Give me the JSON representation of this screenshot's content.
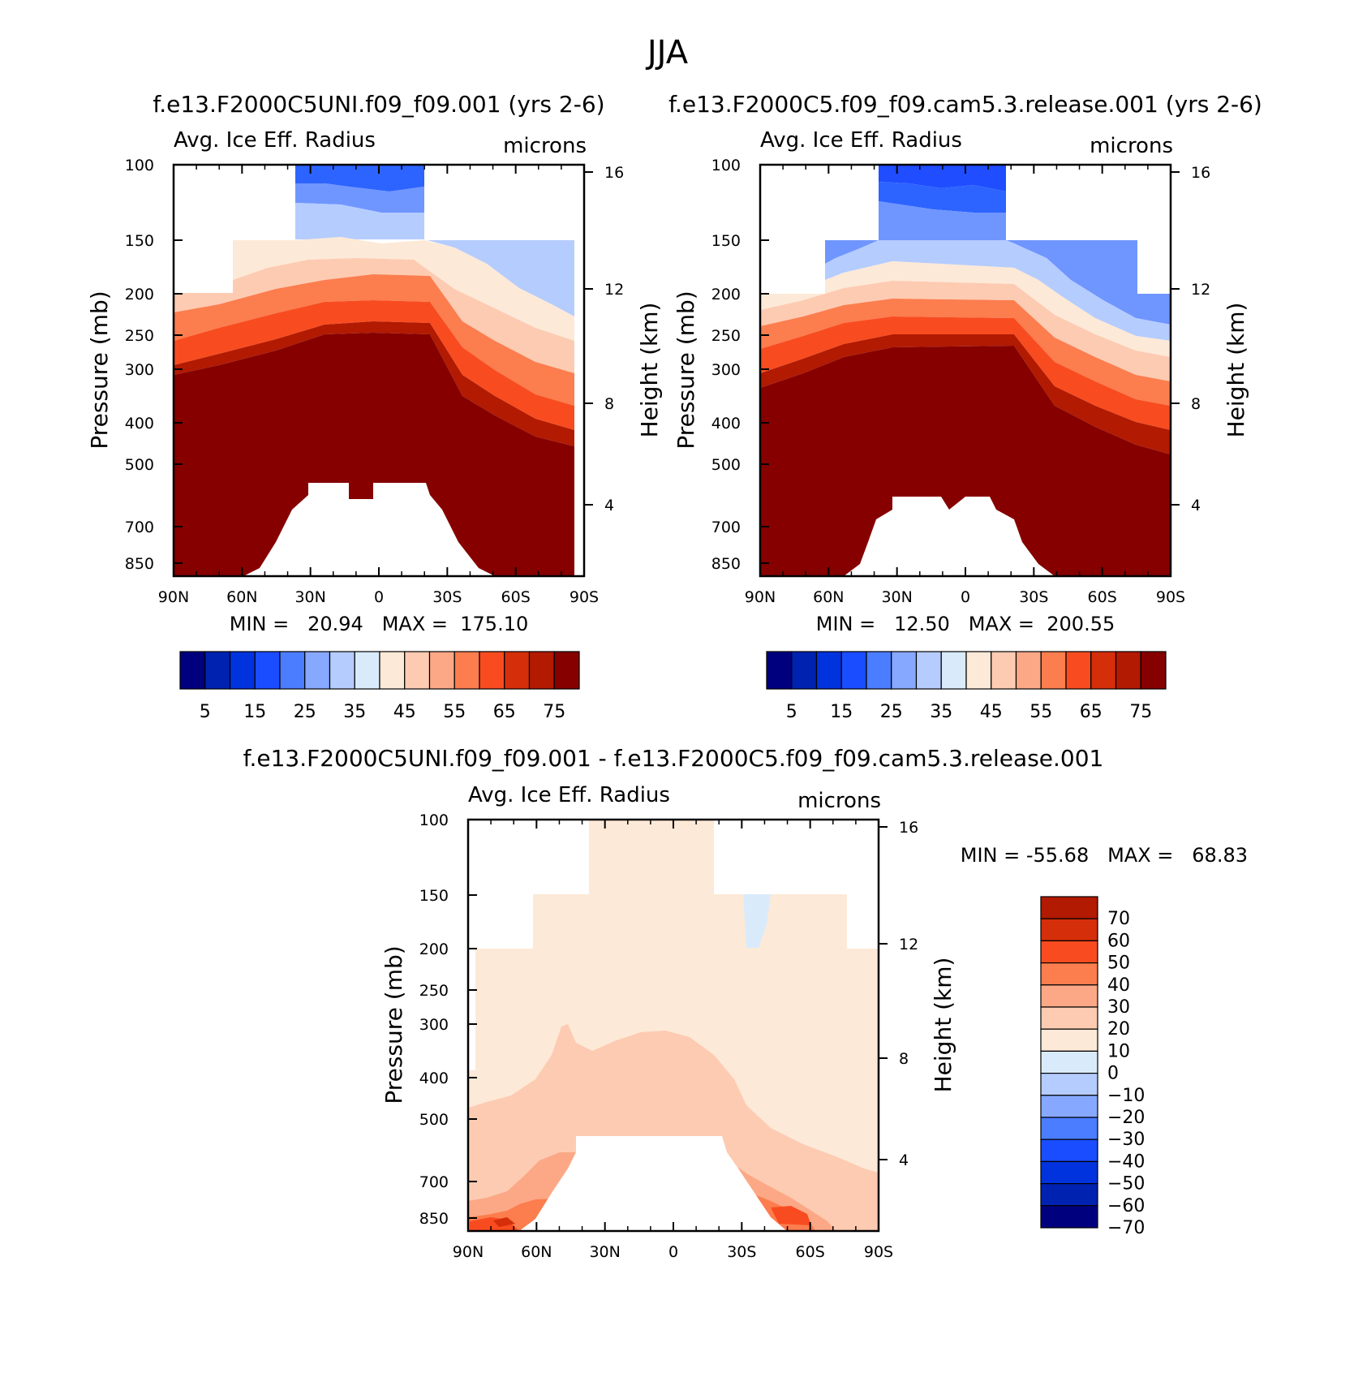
{
  "figure_title": "JJA",
  "chart_data": [
    {
      "type": "contour",
      "title": "f.e13.F2000C5UNI.f09_f09.001 (yrs 2-6)",
      "subtitle_left": "Avg. Ice Eff. Radius",
      "subtitle_right": "microns",
      "ylabel": "Pressure (mb)",
      "ylabel_right": "Height (km)",
      "x_ticks": [
        "90N",
        "60N",
        "30N",
        "0",
        "30S",
        "60S",
        "90S"
      ],
      "y_ticks": [
        "100",
        "150",
        "200",
        "250",
        "300",
        "400",
        "500",
        "700",
        "850"
      ],
      "height_ticks": [
        "16",
        "12",
        "8",
        "4"
      ],
      "min_max": "MIN =   20.94   MAX =  175.10",
      "min": 20.94,
      "max": 175.1,
      "colorbar": {
        "levels": [
          0,
          5,
          10,
          15,
          20,
          25,
          30,
          35,
          40,
          45,
          50,
          55,
          60,
          65,
          70,
          75
        ],
        "labels": [
          "5",
          "15",
          "25",
          "35",
          "45",
          "55",
          "65",
          "75"
        ]
      }
    },
    {
      "type": "contour",
      "title": "f.e13.F2000C5.f09_f09.cam5.3.release.001 (yrs 2-6)",
      "subtitle_left": "Avg. Ice Eff. Radius",
      "subtitle_right": "microns",
      "ylabel": "Pressure (mb)",
      "ylabel_right": "Height (km)",
      "x_ticks": [
        "90N",
        "60N",
        "30N",
        "0",
        "30S",
        "60S",
        "90S"
      ],
      "y_ticks": [
        "100",
        "150",
        "200",
        "250",
        "300",
        "400",
        "500",
        "700",
        "850"
      ],
      "height_ticks": [
        "16",
        "12",
        "8",
        "4"
      ],
      "min_max": "MIN =   12.50   MAX =  200.55",
      "min": 12.5,
      "max": 200.55,
      "colorbar": {
        "levels": [
          0,
          5,
          10,
          15,
          20,
          25,
          30,
          35,
          40,
          45,
          50,
          55,
          60,
          65,
          70,
          75
        ],
        "labels": [
          "5",
          "15",
          "25",
          "35",
          "45",
          "55",
          "65",
          "75"
        ]
      }
    },
    {
      "type": "contour",
      "title": "f.e13.F2000C5UNI.f09_f09.001 - f.e13.F2000C5.f09_f09.cam5.3.release.001",
      "subtitle_left": "Avg. Ice Eff. Radius",
      "subtitle_right": "microns",
      "ylabel": "Pressure (mb)",
      "ylabel_right": "Height (km)",
      "x_ticks": [
        "90N",
        "60N",
        "30N",
        "0",
        "30S",
        "60S",
        "90S"
      ],
      "y_ticks": [
        "100",
        "150",
        "200",
        "250",
        "300",
        "400",
        "500",
        "700",
        "850"
      ],
      "height_ticks": [
        "16",
        "12",
        "8",
        "4"
      ],
      "min_max": "MIN = -55.68   MAX =   68.83",
      "min": -55.68,
      "max": 68.83,
      "colorbar": {
        "levels": [
          70,
          60,
          50,
          40,
          30,
          20,
          10,
          0,
          -10,
          -20,
          -30,
          -40,
          -50,
          -60,
          -70
        ],
        "labels": [
          "70",
          "60",
          "50",
          "40",
          "30",
          "20",
          "10",
          "0",
          "-10",
          "-20",
          "-30",
          "-40",
          "-50",
          "-60",
          "-70"
        ]
      }
    }
  ],
  "colors": {
    "scale": [
      "#00007f",
      "#0022b0",
      "#0033dd",
      "#1a4dff",
      "#4a7dff",
      "#86a8ff",
      "#b5ccff",
      "#d9ebfb",
      "#fde9d7",
      "#fdcbb2",
      "#fca886",
      "#fc7d4e",
      "#f84c20",
      "#d52e0a",
      "#b21a02",
      "#860000"
    ]
  }
}
